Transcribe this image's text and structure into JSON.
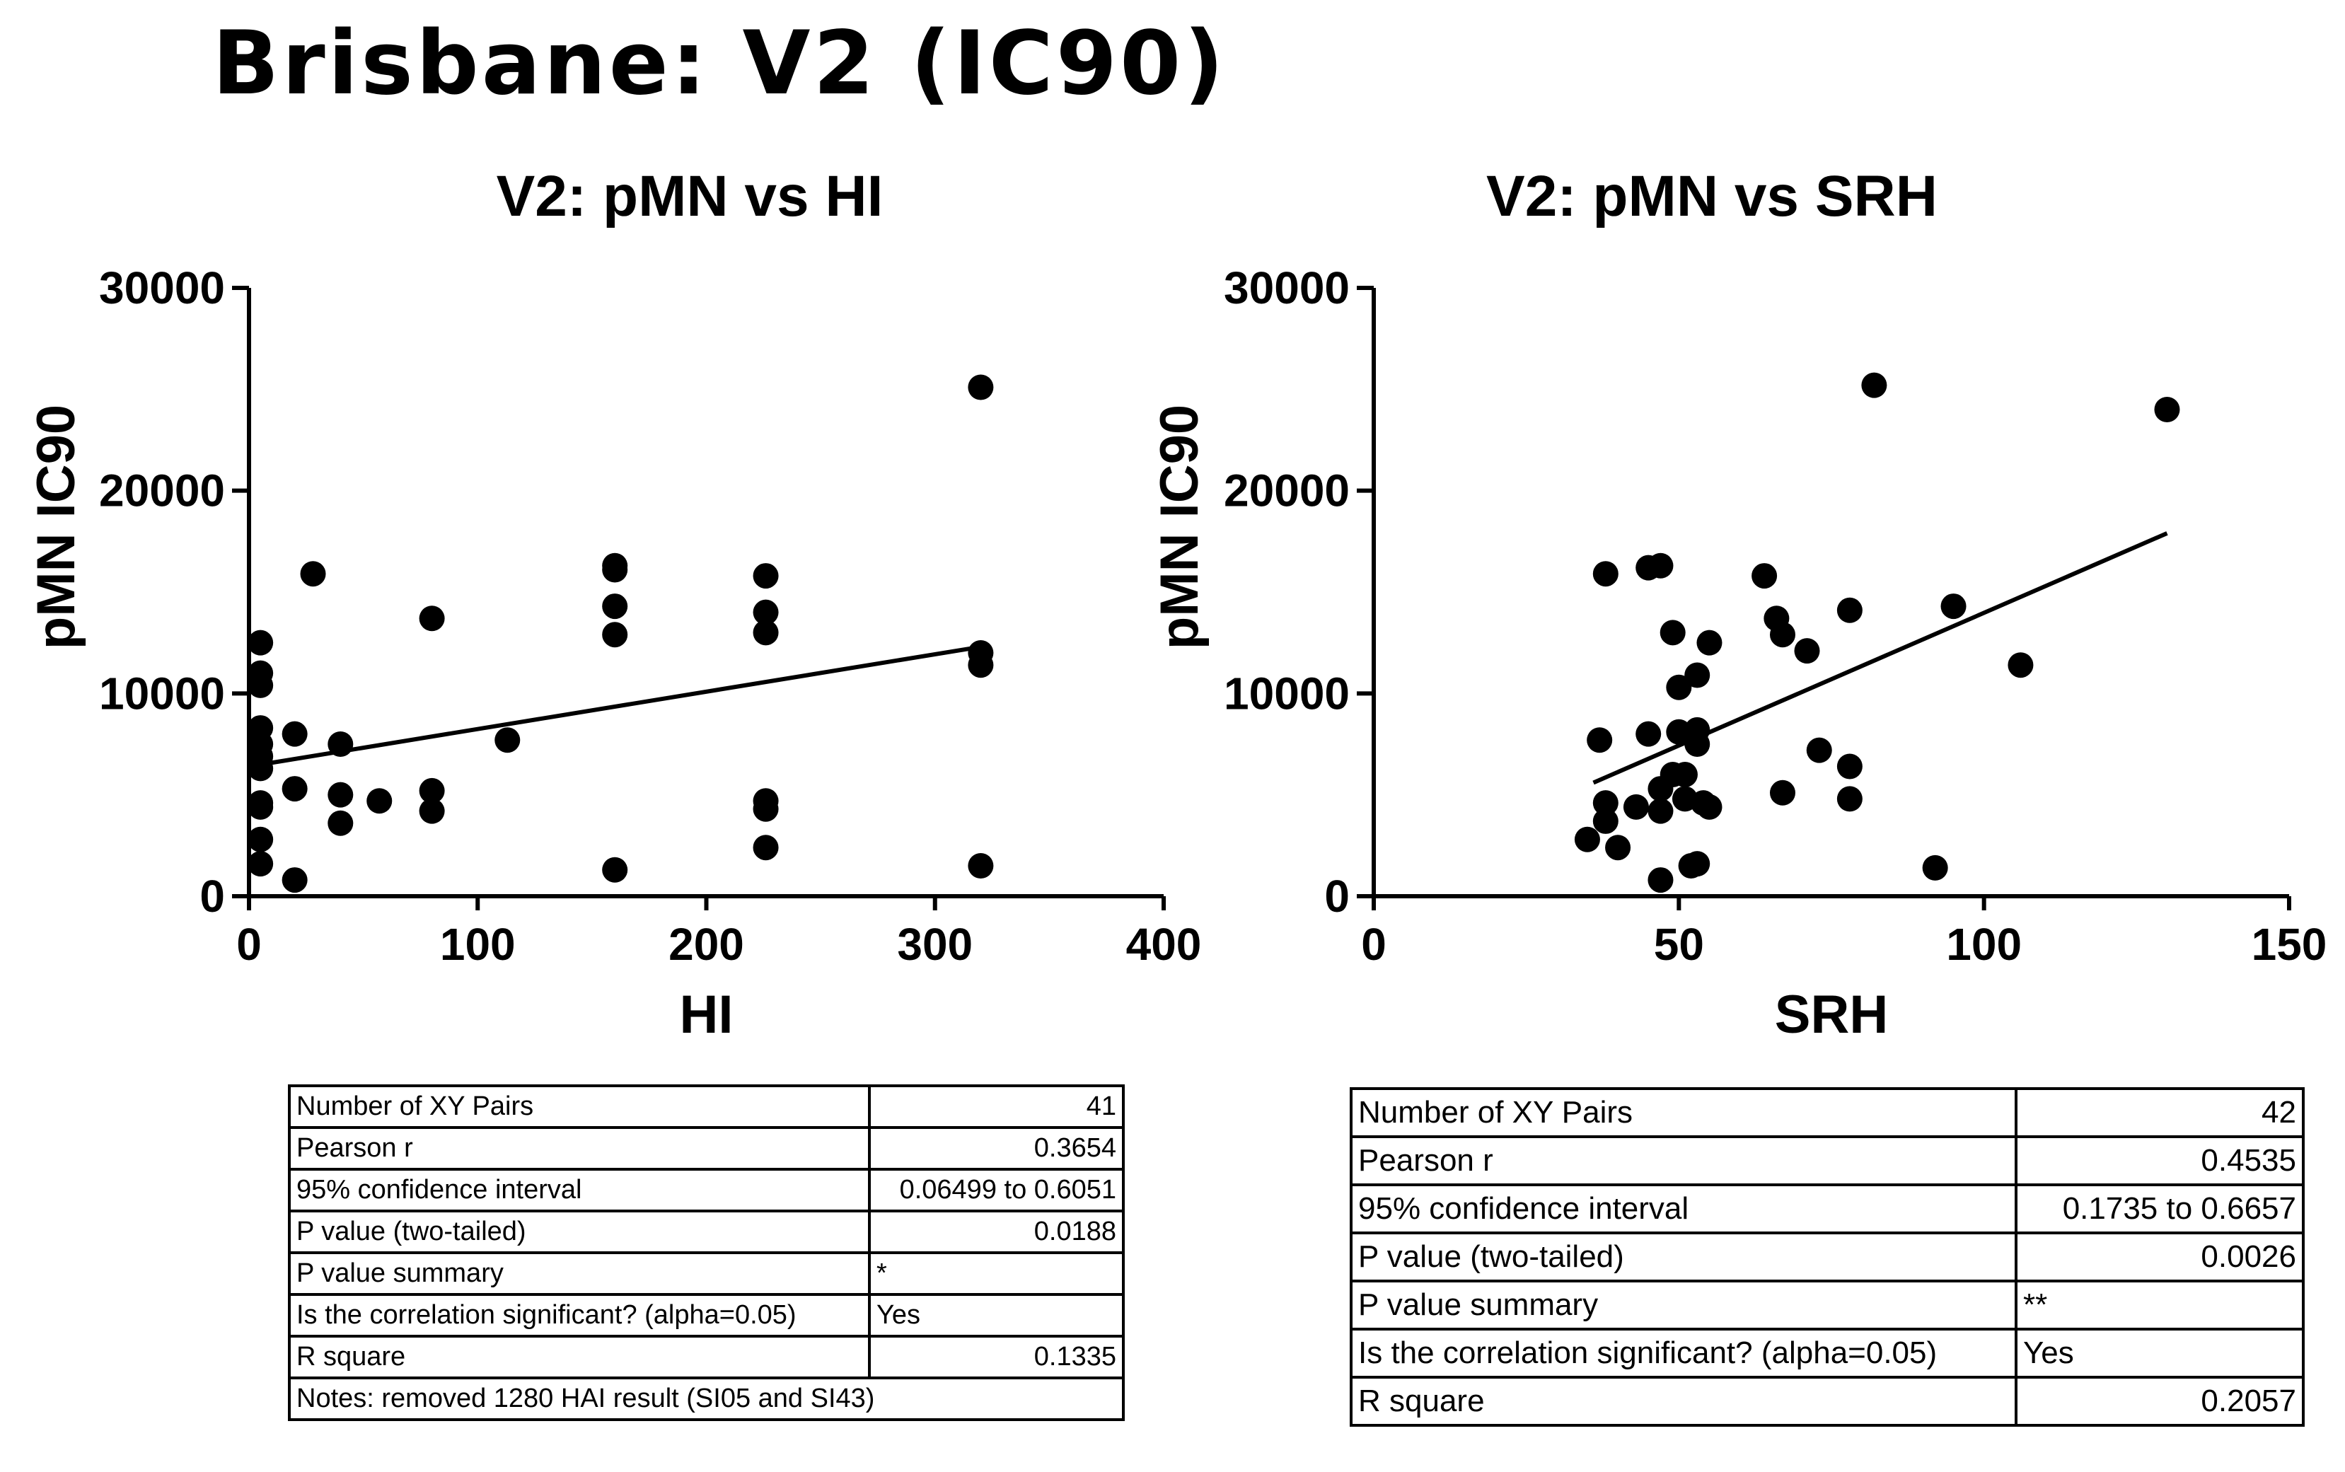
{
  "title": "Brisbane: V2 (IC90)",
  "colors": {
    "points": "#000000",
    "line": "#000000",
    "axis": "#000000"
  },
  "chart_data": [
    {
      "type": "scatter",
      "title": "V2: pMN vs HI",
      "xlabel": "HI",
      "ylabel": "pMN IC90",
      "xlim": [
        0,
        400
      ],
      "ylim": [
        0,
        30000
      ],
      "x_ticks": [
        "0",
        "100",
        "200",
        "300",
        "400"
      ],
      "y_ticks": [
        "0",
        "10000",
        "20000",
        "30000"
      ],
      "regression_line": {
        "x": [
          0,
          320
        ],
        "y": [
          6400,
          12300
        ]
      },
      "points": [
        [
          5,
          12500
        ],
        [
          5,
          11000
        ],
        [
          5,
          10400
        ],
        [
          5,
          8300
        ],
        [
          5,
          7500
        ],
        [
          5,
          6900
        ],
        [
          5,
          6300
        ],
        [
          5,
          4600
        ],
        [
          5,
          4400
        ],
        [
          5,
          2800
        ],
        [
          5,
          1600
        ],
        [
          20,
          8000
        ],
        [
          20,
          5300
        ],
        [
          20,
          800
        ],
        [
          28,
          15900
        ],
        [
          40,
          7500
        ],
        [
          40,
          5000
        ],
        [
          40,
          3600
        ],
        [
          57,
          4700
        ],
        [
          80,
          13700
        ],
        [
          80,
          5200
        ],
        [
          80,
          4200
        ],
        [
          113,
          7700
        ],
        [
          160,
          16300
        ],
        [
          160,
          16100
        ],
        [
          160,
          14300
        ],
        [
          160,
          12900
        ],
        [
          160,
          1300
        ],
        [
          226,
          15800
        ],
        [
          226,
          14000
        ],
        [
          226,
          13000
        ],
        [
          226,
          4700
        ],
        [
          226,
          4300
        ],
        [
          226,
          2400
        ],
        [
          320,
          25100
        ],
        [
          320,
          12000
        ],
        [
          320,
          11400
        ],
        [
          320,
          1500
        ]
      ],
      "stats": [
        {
          "label": "Number of XY Pairs",
          "value": "41",
          "align": "right"
        },
        {
          "label": "Pearson r",
          "value": "0.3654",
          "align": "right"
        },
        {
          "label": "95% confidence interval",
          "value": "0.06499 to 0.6051",
          "align": "right"
        },
        {
          "label": "P value (two-tailed)",
          "value": "0.0188",
          "align": "right"
        },
        {
          "label": "P value summary",
          "value": "*",
          "align": "left"
        },
        {
          "label": "Is the correlation significant? (alpha=0.05)",
          "value": "Yes",
          "align": "left"
        },
        {
          "label": "R square",
          "value": "0.1335",
          "align": "right"
        }
      ],
      "notes": "Notes: removed 1280 HAI result (SI05 and SI43)"
    },
    {
      "type": "scatter",
      "title": "V2: pMN vs SRH",
      "xlabel": "SRH",
      "ylabel": "pMN IC90",
      "xlim": [
        0,
        150
      ],
      "ylim": [
        0,
        30000
      ],
      "x_ticks": [
        "0",
        "50",
        "100",
        "150"
      ],
      "y_ticks": [
        "0",
        "10000",
        "20000",
        "30000"
      ],
      "regression_line": {
        "x": [
          36,
          130
        ],
        "y": [
          5600,
          17900
        ]
      },
      "points": [
        [
          35,
          2800
        ],
        [
          37,
          7700
        ],
        [
          38,
          15900
        ],
        [
          38,
          4600
        ],
        [
          38,
          3700
        ],
        [
          40,
          2400
        ],
        [
          43,
          4400
        ],
        [
          45,
          16200
        ],
        [
          45,
          8000
        ],
        [
          47,
          16300
        ],
        [
          47,
          5300
        ],
        [
          47,
          4200
        ],
        [
          47,
          800
        ],
        [
          49,
          13000
        ],
        [
          49,
          6000
        ],
        [
          50,
          10300
        ],
        [
          50,
          8100
        ],
        [
          51,
          6000
        ],
        [
          51,
          4800
        ],
        [
          52,
          1500
        ],
        [
          53,
          10900
        ],
        [
          53,
          8200
        ],
        [
          53,
          7500
        ],
        [
          53,
          1600
        ],
        [
          54,
          4600
        ],
        [
          55,
          12500
        ],
        [
          55,
          4400
        ],
        [
          64,
          15800
        ],
        [
          66,
          13700
        ],
        [
          67,
          12900
        ],
        [
          67,
          5100
        ],
        [
          71,
          12100
        ],
        [
          73,
          7200
        ],
        [
          78,
          14100
        ],
        [
          78,
          6400
        ],
        [
          78,
          4800
        ],
        [
          82,
          25200
        ],
        [
          92,
          1400
        ],
        [
          95,
          14300
        ],
        [
          106,
          11400
        ],
        [
          130,
          24000
        ]
      ],
      "stats": [
        {
          "label": "Number of XY Pairs",
          "value": "42",
          "align": "right"
        },
        {
          "label": "Pearson r",
          "value": "0.4535",
          "align": "right"
        },
        {
          "label": "95% confidence interval",
          "value": "0.1735 to 0.6657",
          "align": "right"
        },
        {
          "label": "P value (two-tailed)",
          "value": "0.0026",
          "align": "right"
        },
        {
          "label": "P value summary",
          "value": "**",
          "align": "left"
        },
        {
          "label": "Is the correlation significant? (alpha=0.05)",
          "value": "Yes",
          "align": "left"
        },
        {
          "label": "R square",
          "value": "0.2057",
          "align": "right"
        }
      ]
    }
  ]
}
